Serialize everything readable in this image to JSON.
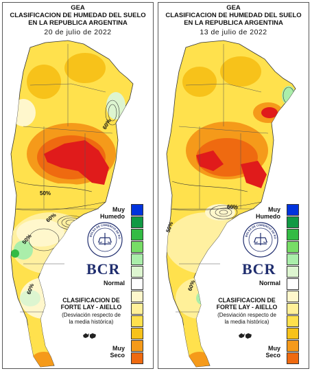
{
  "panels": [
    {
      "id": "left",
      "org": "GEA",
      "title_line1": "CLASIFICACION DE HUMEDAD DEL SUELO",
      "title_line2": "EN LA REPUBLICA ARGENTINA",
      "date": "20 de julio de 2022",
      "contour_labels": [
        "60%",
        "60%",
        "50%",
        "50%",
        "60%"
      ],
      "legend_wet_label": "Muy Humedo",
      "legend_normal_label": "Normal",
      "legend_dry_label": "Muy Seco",
      "brand": "BCR",
      "seal_text": "BOLSA DE COMERCIO DE ROSARIO",
      "classification_line1": "CLASIFICACION DE",
      "classification_line2": "FORTE LAY - AIELLO",
      "classification_note1": "(Desviación respecto de",
      "classification_note2": "la media histórica)"
    },
    {
      "id": "right",
      "org": "GEA",
      "title_line1": "CLASIFICACION DE HUMEDAD DEL SUELO",
      "title_line2": "EN LA REPUBLICA ARGENTINA",
      "date": "13 de julio de 2022",
      "contour_labels": [
        "60%",
        "50%",
        "60%"
      ],
      "legend_wet_label": "Muy Humedo",
      "legend_normal_label": "Normal",
      "legend_dry_label": "Muy Seco",
      "brand": "BCR",
      "seal_text": "BOLSA DE COMERCIO DE ROSARIO",
      "classification_line1": "CLASIFICACION DE",
      "classification_line2": "FORTE LAY - AIELLO",
      "classification_note1": "(Desviación respecto de",
      "classification_note2": "la media histórica)"
    }
  ],
  "legend_colors": [
    "#0033dd",
    "#119944",
    "#33bb44",
    "#77dd66",
    "#aaeeaa",
    "#ddf5d0",
    "#ffffff",
    "#fff7cc",
    "#fff099",
    "#ffe14d",
    "#f7c21a",
    "#f59a1a",
    "#ef6a10",
    "#e01b1b"
  ]
}
